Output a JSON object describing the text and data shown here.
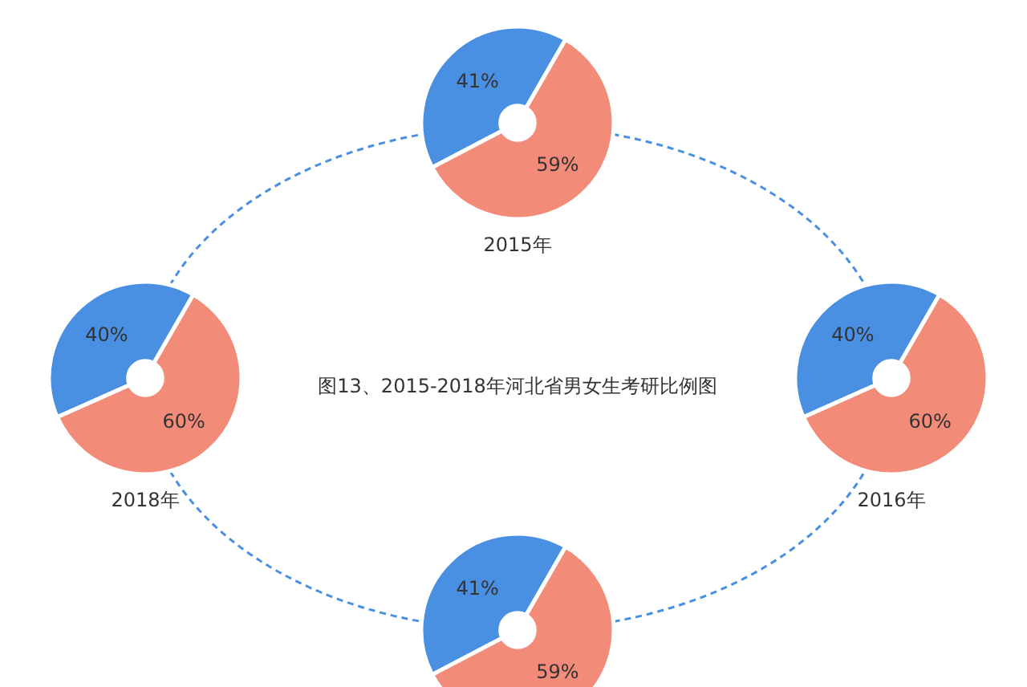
{
  "chart_data": [
    {
      "type": "other",
      "title": "图13、2015-2018年河北省男女生考研比例图"
    },
    {
      "type": "pie",
      "title": "2015年",
      "categories": [
        null,
        null
      ],
      "values": [
        41,
        59
      ],
      "colors": [
        "#4a90e2",
        "#f28b78"
      ],
      "value_labels": [
        "41%",
        "59%"
      ]
    },
    {
      "type": "pie",
      "title": "2018年",
      "categories": [
        null,
        null
      ],
      "values": [
        40,
        60
      ],
      "colors": [
        "#4a90e2",
        "#f28b78"
      ],
      "value_labels": [
        "40%",
        "60%"
      ]
    },
    {
      "type": "pie",
      "title": "2016年",
      "categories": [
        null,
        null
      ],
      "values": [
        40,
        60
      ],
      "colors": [
        "#4a90e2",
        "#f28b78"
      ],
      "value_labels": [
        "40%",
        "60%"
      ]
    },
    {
      "type": "pie",
      "categories": [
        null,
        null
      ],
      "values": [
        41,
        59
      ],
      "colors": [
        "#4a90e2",
        "#f28b78"
      ],
      "value_labels": [
        "41%",
        "59%"
      ]
    }
  ]
}
